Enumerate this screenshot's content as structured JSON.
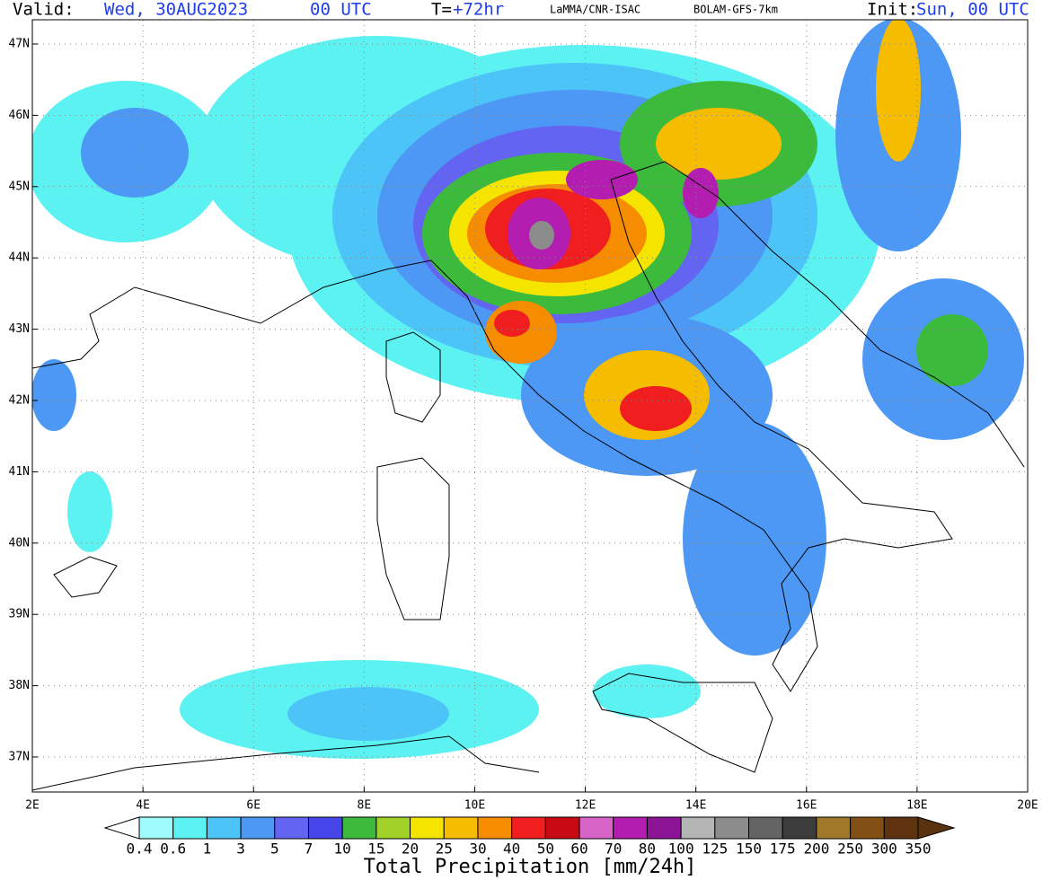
{
  "header": {
    "valid_label": "Valid:",
    "valid_date": "Wed, 30AUG2023",
    "valid_hour": "00 UTC",
    "lead_label": "T=",
    "lead_time": "+72hr",
    "source": "LaMMA/CNR-ISAC",
    "model": "BOLAM-GFS-7km",
    "init_label": "Init:",
    "init_time": "Sun, 00 UTC"
  },
  "map": {
    "lat_labels": [
      "47N",
      "46N",
      "45N",
      "44N",
      "43N",
      "42N",
      "41N",
      "40N",
      "39N",
      "38N",
      "37N"
    ],
    "lon_labels": [
      "2E",
      "4E",
      "6E",
      "8E",
      "10E",
      "12E",
      "14E",
      "16E",
      "18E",
      "20E"
    ]
  },
  "colorbar": {
    "title": "Total Precipitation [mm/24h]",
    "levels": [
      0.4,
      0.6,
      1,
      3,
      5,
      7,
      10,
      15,
      20,
      25,
      30,
      40,
      50,
      60,
      70,
      80,
      100,
      125,
      150,
      175,
      200,
      250,
      300,
      350
    ],
    "under_color": "#ffffff",
    "over_color": "#5a3210",
    "colors": [
      "#a0fcfc",
      "#5cf2f2",
      "#4cc4f8",
      "#4c98f4",
      "#6464f2",
      "#4646ea",
      "#3cba3c",
      "#a0d22a",
      "#f4e400",
      "#f6bc00",
      "#f68c00",
      "#f01e1e",
      "#c80a14",
      "#d864c8",
      "#b41eb0",
      "#8c1496",
      "#b4b4b4",
      "#8c8c8c",
      "#646464",
      "#3c3c3c",
      "#a07828",
      "#825014",
      "#5f3210"
    ]
  }
}
